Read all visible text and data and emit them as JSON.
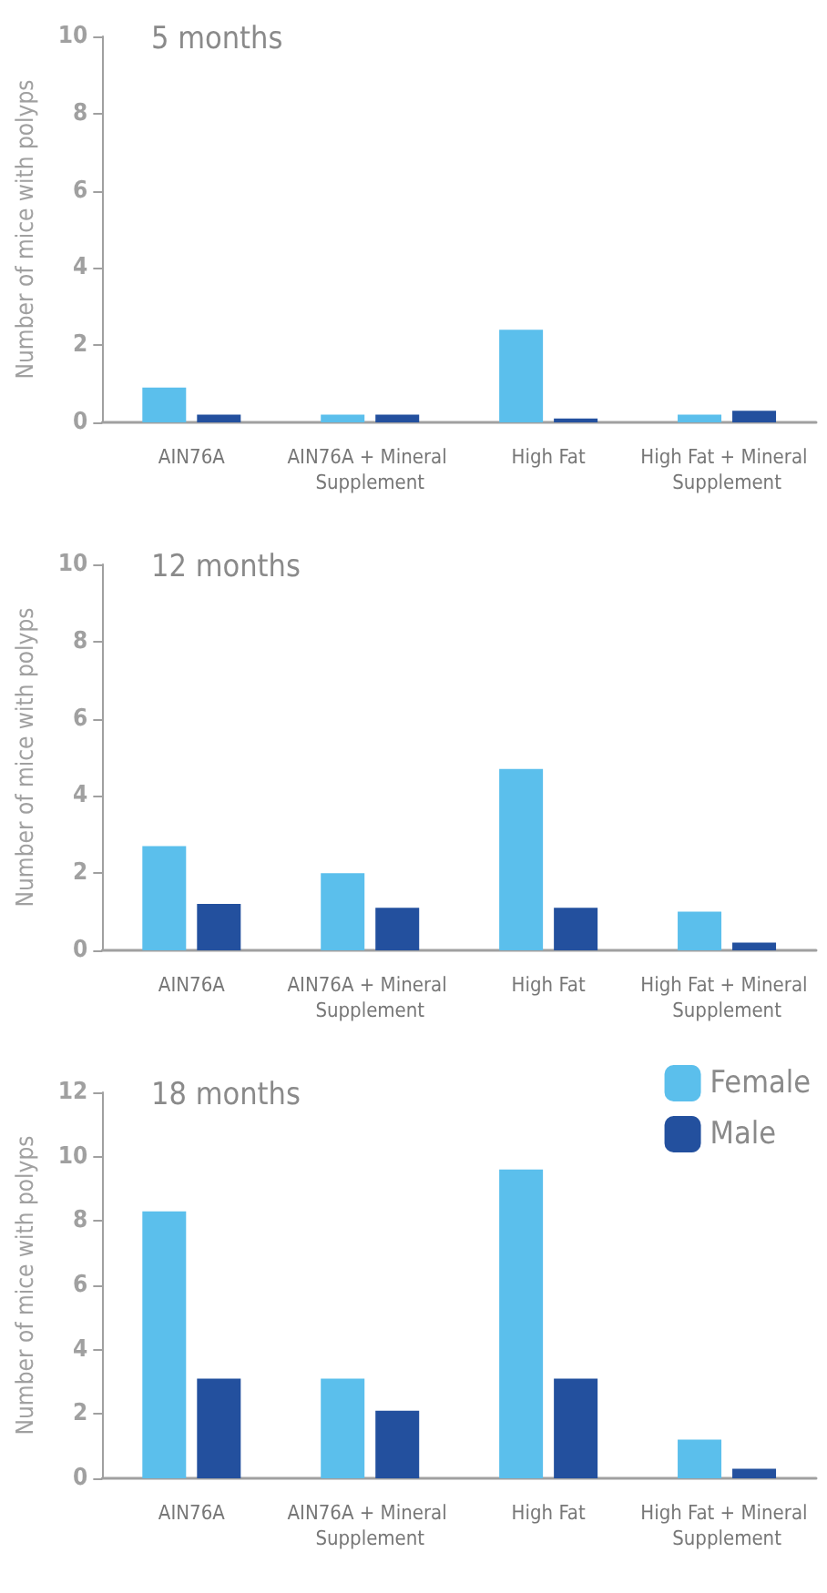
{
  "chart_data": [
    {
      "type": "bar",
      "title": "5 months",
      "ylabel": "Number of mice with polyps",
      "categories": [
        "AIN76A",
        "AIN76A + Mineral Supplement",
        "High Fat",
        "High Fat + Mineral Supplement"
      ],
      "series": [
        {
          "color": "#5bbfec",
          "values": [
            0.9,
            0.2,
            2.4,
            0.2
          ]
        },
        {
          "color": "#23509e",
          "values": [
            0.2,
            0.2,
            0.1,
            0.3
          ]
        }
      ],
      "ylim": [
        0,
        10
      ],
      "yticks": [
        0,
        2,
        4,
        6,
        8,
        10
      ],
      "grid": false,
      "legend": false
    },
    {
      "type": "bar",
      "title": "12 months",
      "ylabel": "Number of mice with polyps",
      "categories": [
        "AIN76A",
        "AIN76A + Mineral Supplement",
        "High Fat",
        "High Fat + Mineral Supplement"
      ],
      "series": [
        {
          "color": "#5bbfec",
          "values": [
            2.7,
            2.0,
            4.7,
            1.0
          ]
        },
        {
          "color": "#23509e",
          "values": [
            1.2,
            1.1,
            1.1,
            0.2
          ]
        }
      ],
      "ylim": [
        0,
        10
      ],
      "yticks": [
        0,
        2,
        4,
        6,
        8,
        10
      ],
      "grid": false,
      "legend": false
    },
    {
      "type": "bar",
      "title": "18 months",
      "ylabel": "Number of mice with polyps",
      "categories": [
        "AIN76A",
        "AIN76A + Mineral Supplement",
        "High Fat",
        "High Fat + Mineral Supplement"
      ],
      "series": [
        {
          "name": "Female",
          "color": "#5bbfec",
          "values": [
            8.3,
            3.1,
            9.6,
            1.2
          ]
        },
        {
          "name": "Male",
          "color": "#23509e",
          "values": [
            3.1,
            2.1,
            3.1,
            0.3
          ]
        }
      ],
      "ylim": [
        0,
        12
      ],
      "yticks": [
        0,
        2,
        4,
        6,
        8,
        10,
        12
      ],
      "grid": false,
      "legend": "top right"
    }
  ]
}
